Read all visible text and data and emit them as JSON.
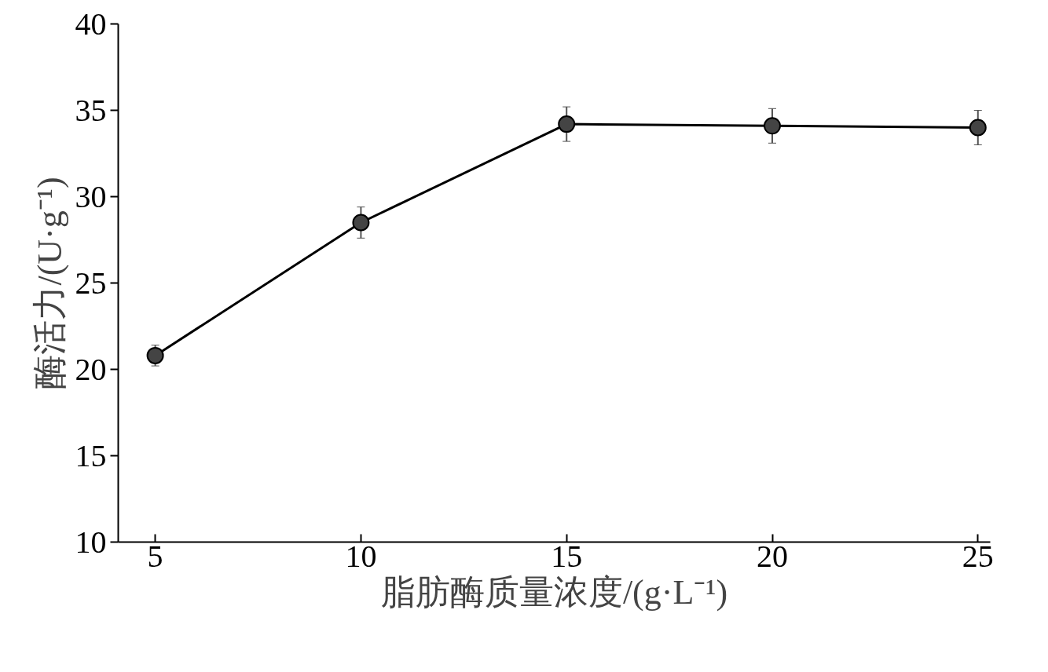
{
  "chart_data": {
    "type": "line",
    "xlabel": "脂肪酶质量浓度/(g·L⁻¹)",
    "ylabel": "酶活力/(U·g⁻¹)",
    "x": [
      5,
      10,
      15,
      20,
      25
    ],
    "series": [
      {
        "color": "#000000",
        "values": [
          20.8,
          28.5,
          34.2,
          34.1,
          34.0
        ],
        "errors": [
          0.6,
          0.9,
          1.0,
          1.0,
          1.0
        ]
      }
    ],
    "xlim": [
      4.1,
      25.3
    ],
    "xticks": [
      5,
      10,
      15,
      20,
      25
    ],
    "ylim": [
      10,
      40
    ],
    "yticks": [
      10,
      15,
      20,
      25,
      30,
      35,
      40
    ],
    "marker": "circle",
    "line_style": "solid",
    "grid": false
  }
}
